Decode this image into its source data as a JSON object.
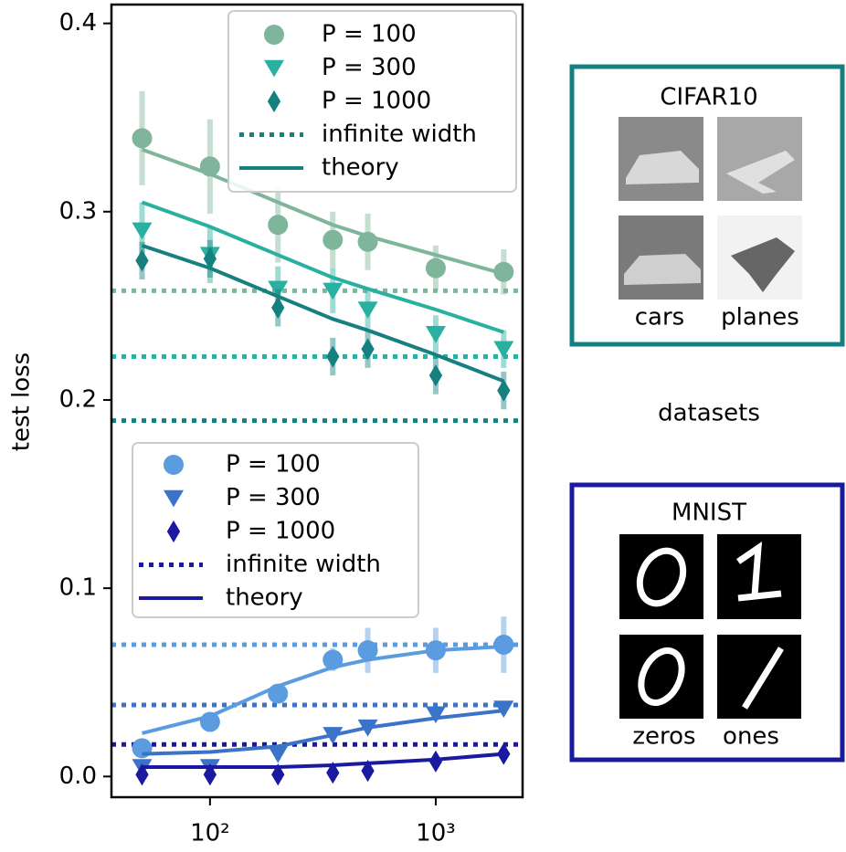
{
  "chart_data": {
    "type": "scatter",
    "ylabel": "test loss",
    "log_x": true,
    "x": [
      50,
      100,
      200,
      350,
      500,
      1000,
      2000
    ],
    "xlim": [
      36.6,
      2425
    ],
    "ylim": [
      -0.011,
      0.41
    ],
    "xticks": [
      {
        "value": 100,
        "label": "10²"
      },
      {
        "value": 1000,
        "label": "10³"
      }
    ],
    "yticks": [
      {
        "value": 0,
        "label": "0.0"
      },
      0.1,
      0.2,
      0.3,
      0.4
    ],
    "groups": [
      {
        "infinite_label": "infinite width",
        "theory_label": "theory",
        "legend_line_color": "#168080",
        "series": [
          {
            "name": "P = 100",
            "marker": "circle",
            "color": "#7fb59a",
            "values": [
              0.339,
              0.324,
              0.293,
              0.285,
              0.284,
              0.27,
              0.268
            ],
            "errors": [
              0.025,
              0.025,
              0.02,
              0.015,
              0.015,
              0.012,
              0.012
            ],
            "theory": [
              0.333,
              0.32,
              0.305,
              0.293,
              0.287,
              0.277,
              0.267
            ],
            "infinite": 0.258
          },
          {
            "name": "P = 300",
            "marker": "triangle",
            "color": "#2ab0a0",
            "values": [
              0.29,
              0.277,
              0.259,
              0.258,
              0.248,
              0.235,
              0.227
            ],
            "errors": [
              0.015,
              0.015,
              0.012,
              0.012,
              0.01,
              0.01,
              0.01
            ],
            "theory": [
              0.305,
              0.292,
              0.277,
              0.265,
              0.259,
              0.248,
              0.236
            ],
            "infinite": 0.223
          },
          {
            "name": "P = 1000",
            "marker": "diamond",
            "color": "#168080",
            "values": [
              0.274,
              0.275,
              0.249,
              0.223,
              0.227,
              0.213,
              0.205
            ],
            "errors": [
              0.01,
              0.01,
              0.01,
              0.01,
              0.01,
              0.01,
              0.01
            ],
            "theory": [
              0.282,
              0.27,
              0.255,
              0.243,
              0.237,
              0.224,
              0.21
            ],
            "infinite": 0.189
          }
        ]
      },
      {
        "infinite_label": "infinite width",
        "theory_label": "theory",
        "legend_line_color": "#1a1a9a",
        "series": [
          {
            "name": "P = 100",
            "marker": "circle",
            "color": "#5b9be0",
            "values": [
              0.015,
              0.029,
              0.044,
              0.062,
              0.067,
              0.067,
              0.07
            ],
            "errors": [
              0.003,
              0.004,
              0.005,
              0.006,
              0.012,
              0.012,
              0.015
            ],
            "theory": [
              0.023,
              0.032,
              0.048,
              0.058,
              0.062,
              0.067,
              0.069
            ],
            "infinite": 0.07
          },
          {
            "name": "P = 300",
            "marker": "triangle",
            "color": "#3a73c8",
            "values": [
              0.005,
              0.005,
              0.012,
              0.022,
              0.026,
              0.033,
              0.036
            ],
            "errors": [
              0.002,
              0.002,
              0.003,
              0.003,
              0.003,
              0.003,
              0.003
            ],
            "theory": [
              0.012,
              0.013,
              0.016,
              0.022,
              0.026,
              0.031,
              0.035
            ],
            "infinite": 0.038
          },
          {
            "name": "P = 1000",
            "marker": "diamond",
            "color": "#1a1aa0",
            "values": [
              0.001,
              0.001,
              0.001,
              0.002,
              0.003,
              0.008,
              0.012
            ],
            "errors": [
              0.002,
              0.002,
              0.002,
              0.002,
              0.002,
              0.002,
              0.002
            ],
            "theory": [
              0.005,
              0.005,
              0.005,
              0.006,
              0.007,
              0.009,
              0.012
            ],
            "infinite": 0.017
          }
        ]
      }
    ]
  },
  "datasets": {
    "label": "datasets",
    "cifar": {
      "title": "CIFAR10",
      "captions": [
        "cars",
        "planes"
      ]
    },
    "mnist": {
      "title": "MNIST",
      "captions": [
        "zeros",
        "ones"
      ]
    }
  }
}
